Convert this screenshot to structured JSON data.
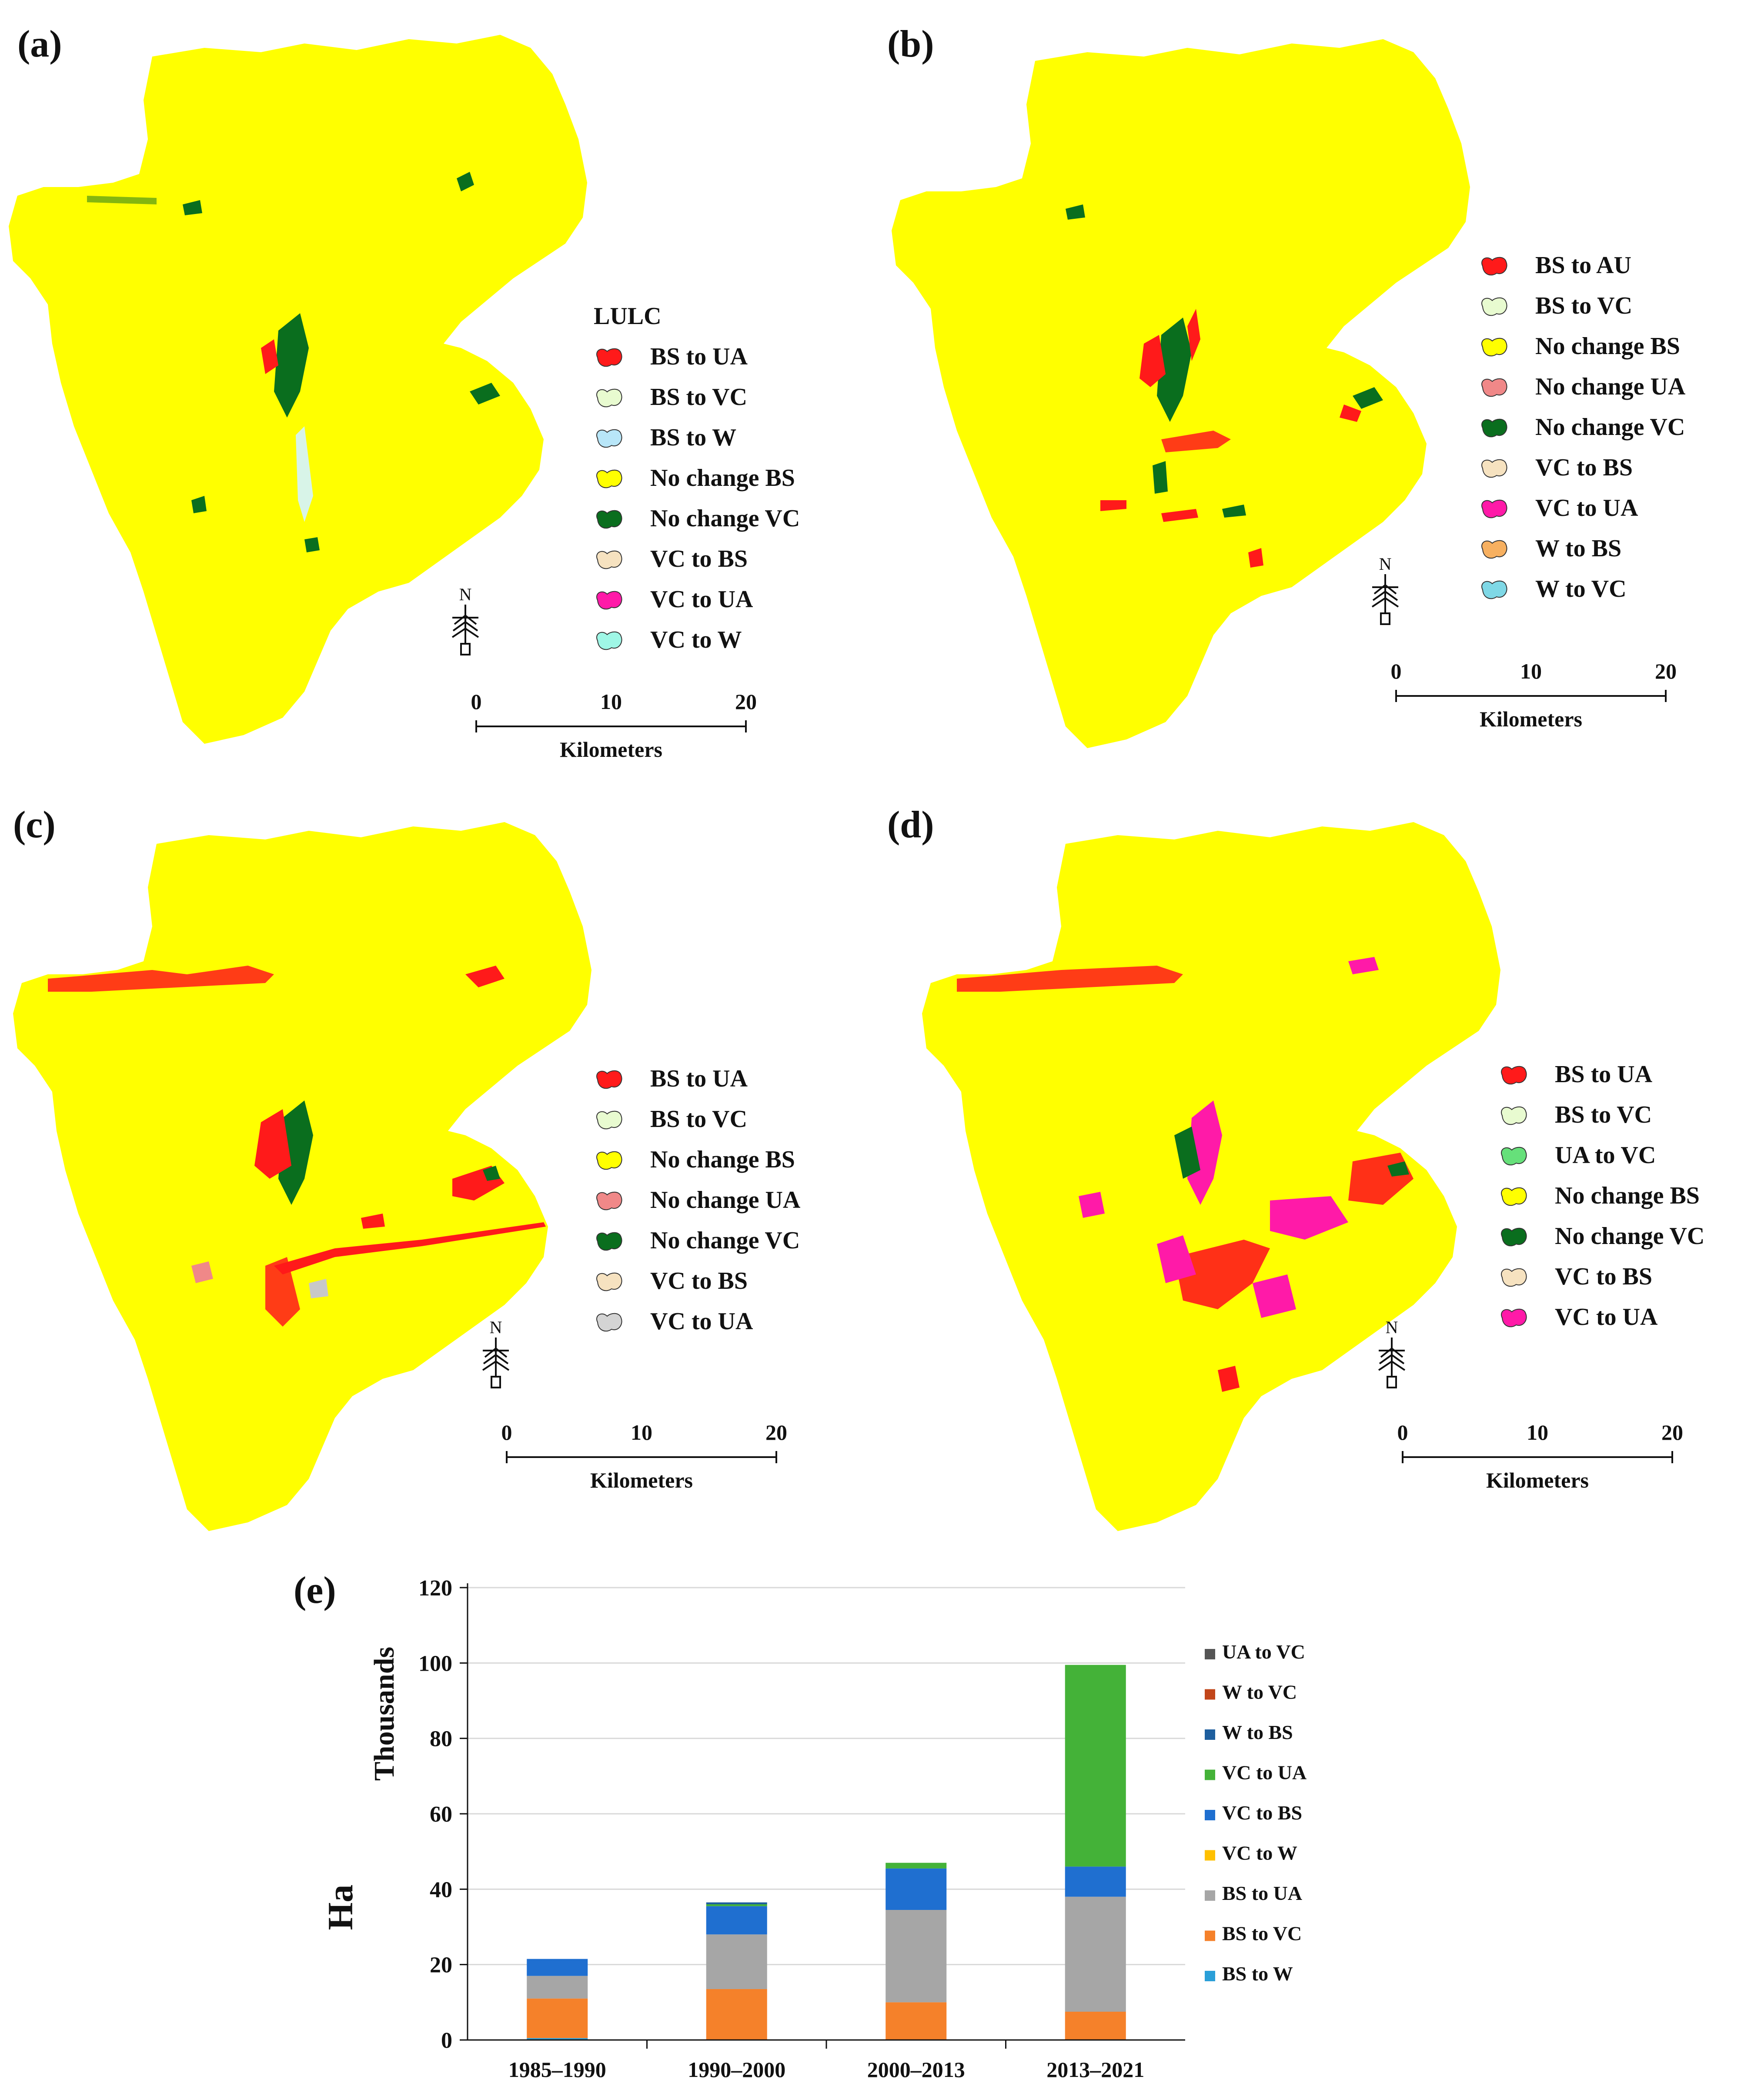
{
  "panels": [
    {
      "label": "(a)",
      "legend_title": "LULC",
      "legend": [
        {
          "text": "BS to UA",
          "color": "#ff1a1a"
        },
        {
          "text": "BS to VC",
          "color": "#e8fbd0"
        },
        {
          "text": "BS to W",
          "color": "#b8e6f8"
        },
        {
          "text": "No change BS",
          "color": "#ffff00"
        },
        {
          "text": "No change VC",
          "color": "#0a6e1e"
        },
        {
          "text": "VC to BS",
          "color": "#f6e2c0"
        },
        {
          "text": "VC to UA",
          "color": "#ff1aa8"
        },
        {
          "text": "VC to W",
          "color": "#9ff7e6"
        }
      ],
      "scale": {
        "ticks": [
          "0",
          "10",
          "20"
        ],
        "unit": "Kilometers"
      }
    },
    {
      "label": "(b)",
      "legend_title": "",
      "legend": [
        {
          "text": "BS to AU",
          "color": "#ff1a1a"
        },
        {
          "text": "BS to VC",
          "color": "#e8fbd0"
        },
        {
          "text": "No change BS",
          "color": "#ffff00"
        },
        {
          "text": "No change UA",
          "color": "#f08888"
        },
        {
          "text": "No change VC",
          "color": "#0a6e1e"
        },
        {
          "text": "VC to BS",
          "color": "#f6e2c0"
        },
        {
          "text": "VC to UA",
          "color": "#ff1aa8"
        },
        {
          "text": "W to BS",
          "color": "#f7b060"
        },
        {
          "text": "W to VC",
          "color": "#7fd8e6"
        }
      ],
      "scale": {
        "ticks": [
          "0",
          "10",
          "20"
        ],
        "unit": "Kilometers"
      }
    },
    {
      "label": "(c)",
      "legend_title": "",
      "legend": [
        {
          "text": "BS to UA",
          "color": "#ff1a1a"
        },
        {
          "text": "BS to VC",
          "color": "#e8fbd0"
        },
        {
          "text": "No change BS",
          "color": "#ffff00"
        },
        {
          "text": "No change UA",
          "color": "#f08888"
        },
        {
          "text": "No change VC",
          "color": "#0a6e1e"
        },
        {
          "text": "VC to BS",
          "color": "#f6e2c0"
        },
        {
          "text": "VC to UA",
          "color": "#d4d4d4"
        }
      ],
      "scale": {
        "ticks": [
          "0",
          "10",
          "20"
        ],
        "unit": "Kilometers"
      }
    },
    {
      "label": "(d)",
      "legend_title": "",
      "legend": [
        {
          "text": "BS to UA",
          "color": "#ff1a1a"
        },
        {
          "text": "BS to VC",
          "color": "#e8fbd0"
        },
        {
          "text": "UA to VC",
          "color": "#66e07a"
        },
        {
          "text": "No change BS",
          "color": "#ffff00"
        },
        {
          "text": "No change VC",
          "color": "#0a6e1e"
        },
        {
          "text": "VC to BS",
          "color": "#f6e2c0"
        },
        {
          "text": "VC to UA",
          "color": "#ff1aa8"
        }
      ],
      "scale": {
        "ticks": [
          "0",
          "10",
          "20"
        ],
        "unit": "Kilometers"
      }
    }
  ],
  "map_colors": {
    "land": "#ffff00",
    "veg": "#0a6e1e",
    "urban": "#ff1a1a",
    "magenta": "#ff1aa8",
    "pinkish": "#f08888",
    "grey": "#c8c8c8",
    "light": "#d8f4e8"
  },
  "north_symbol": "N",
  "chart_data": {
    "type": "bar",
    "label": "(e)",
    "categories": [
      "1985–1990",
      "1990–2000",
      "2000–2013",
      "2013–2021"
    ],
    "series": [
      {
        "name": "BS to W",
        "color": "#2a9fd8",
        "values": [
          0.5,
          0,
          0,
          0
        ]
      },
      {
        "name": "BS to VC",
        "color": "#f5812a",
        "values": [
          10.5,
          13.5,
          10,
          7.5
        ]
      },
      {
        "name": "VC to W",
        "color": "#ffc000",
        "values": [
          0,
          0,
          0,
          0
        ]
      },
      {
        "name": "BS to UA",
        "color": "#a6a6a6",
        "values": [
          6,
          14.5,
          24.5,
          30.5
        ]
      },
      {
        "name": "VC to BS",
        "color": "#1f6fd0",
        "values": [
          4.5,
          7.5,
          11,
          8
        ]
      },
      {
        "name": "VC to UA",
        "color": "#44b238",
        "values": [
          0,
          0.5,
          1.5,
          53.5
        ]
      },
      {
        "name": "W to BS",
        "color": "#1e5f9e",
        "values": [
          0,
          0.5,
          0,
          0
        ]
      },
      {
        "name": "W to VC",
        "color": "#c2461a",
        "values": [
          0,
          0,
          0,
          0
        ]
      },
      {
        "name": "UA to VC",
        "color": "#555555",
        "values": [
          0,
          0,
          0,
          0
        ]
      }
    ],
    "y_ticks": [
      "0",
      "20",
      "40",
      "60",
      "80",
      "100",
      "120"
    ],
    "ylim": [
      0,
      120
    ],
    "ylabel": "Ha",
    "ylabel_units": "Thousands",
    "grid": true,
    "legend_order": [
      "UA to VC",
      "W to VC",
      "W to BS",
      "VC to UA",
      "VC to BS",
      "VC to W",
      "BS to UA",
      "BS to VC",
      "BS to W"
    ]
  }
}
